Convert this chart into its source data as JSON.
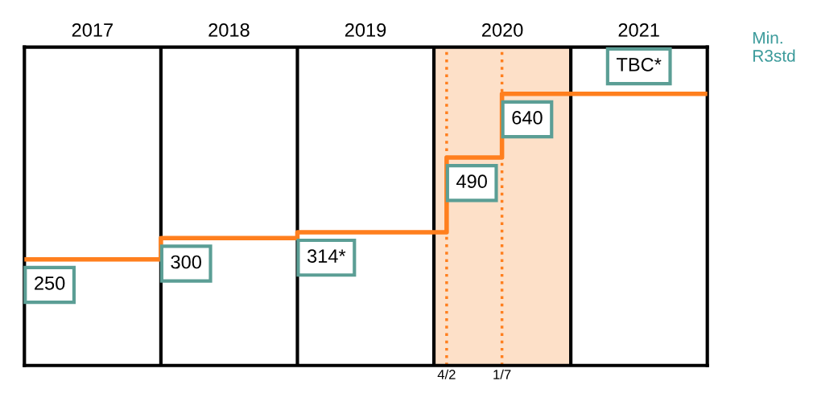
{
  "chart_data": {
    "type": "step",
    "x": [
      "2017-01-01",
      "2018-01-01",
      "2019-01-01",
      "2020-02-04",
      "2020-07-01",
      "2022-01-01"
    ],
    "series": [
      {
        "color": "#ff7f1e",
        "values": [
          250,
          300,
          314,
          490,
          640,
          640
        ],
        "value_labels": [
          "250",
          "300",
          "314*",
          "490",
          "640",
          null
        ]
      }
    ],
    "annotations": [
      "TBC*"
    ],
    "x2lim": [
      "2017-01-01",
      "2022-01-01"
    ],
    "ylabel": "Min.\nR3std",
    "xlim": [
      "2017-01-01",
      "2022-01-01"
    ],
    "ylim": [
      0,
      750
    ],
    "xticks": [
      {
        "value": "2020-02-04",
        "label": "4/2"
      },
      {
        "value": "2020-07-01",
        "label": "1/7"
      }
    ],
    "x2ticks": [
      {
        "value": "2017-07-02",
        "label": "2017"
      },
      {
        "value": "2018-07-02",
        "label": "2018"
      },
      {
        "value": "2019-07-02",
        "label": "2019"
      },
      {
        "value": "2020-07-02",
        "label": "2020"
      },
      {
        "value": "2021-07-02",
        "label": "2021"
      }
    ],
    "tick_labels": "x",
    "ref_lines": [
      {
        "axis": "x",
        "value": "2018-01-01",
        "label": null,
        "color": "#000000",
        "line_style": "solid"
      },
      {
        "axis": "x",
        "value": "2019-01-01",
        "label": null,
        "color": "#000000",
        "line_style": "solid"
      },
      {
        "axis": "x",
        "value": "2020-01-01",
        "label": null,
        "color": "#000000",
        "line_style": "solid"
      },
      {
        "axis": "x",
        "value": "2021-01-01",
        "label": null,
        "color": "#000000",
        "line_style": "solid"
      },
      {
        "axis": "x",
        "value": "2020-02-04",
        "label": null,
        "color": "#ff7f1e",
        "line_style": "dotted"
      },
      {
        "axis": "x",
        "value": "2020-07-01",
        "label": null,
        "color": "#ff7f1e",
        "line_style": "dotted"
      }
    ],
    "bands": [
      {
        "axis": "x",
        "from": "2020-01-01",
        "to": "2021-01-01",
        "label": null,
        "color": "#fde0c8"
      }
    ],
    "grid": false,
    "legend": false
  }
}
